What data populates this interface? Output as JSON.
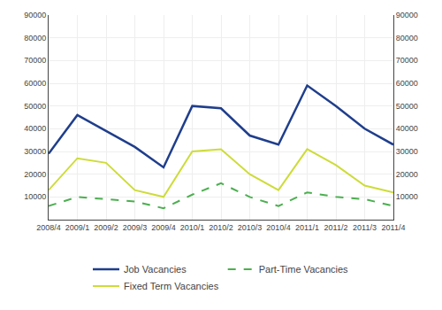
{
  "chart_data": {
    "type": "line",
    "categories": [
      "2008/4",
      "2009/1",
      "2009/2",
      "2009/3",
      "2009/4",
      "2010/1",
      "2010/2",
      "2010/3",
      "2010/4",
      "2011/1",
      "2011/2",
      "2011/3",
      "2011/4"
    ],
    "series": [
      {
        "name": "Job Vacancies",
        "color": "#1F3E8C",
        "line_style": "solid",
        "values": [
          29000,
          46000,
          39000,
          32000,
          23000,
          50000,
          49000,
          37000,
          33000,
          59000,
          50000,
          40000,
          33000
        ]
      },
      {
        "name": "Part-Time Vacancies",
        "color": "#4CAF50",
        "line_style": "dashed",
        "values": [
          6000,
          10000,
          9000,
          8000,
          5000,
          11000,
          16000,
          10000,
          6000,
          12000,
          10000,
          9000,
          6000
        ]
      },
      {
        "name": "Fixed Term Vacancies",
        "color": "#CDDC39",
        "line_style": "solid",
        "values": [
          13000,
          27000,
          25000,
          13000,
          10000,
          30000,
          31000,
          20000,
          13000,
          31000,
          24000,
          15000,
          12000
        ]
      }
    ],
    "ylim": [
      0,
      90000
    ],
    "yticks": [
      10000,
      20000,
      30000,
      40000,
      50000,
      60000,
      70000,
      80000,
      90000
    ],
    "y2lim": [
      0,
      90000
    ],
    "y2ticks": [
      10000,
      20000,
      30000,
      40000,
      50000,
      60000,
      70000,
      80000,
      90000
    ],
    "grid": true,
    "legend": "bottom"
  }
}
